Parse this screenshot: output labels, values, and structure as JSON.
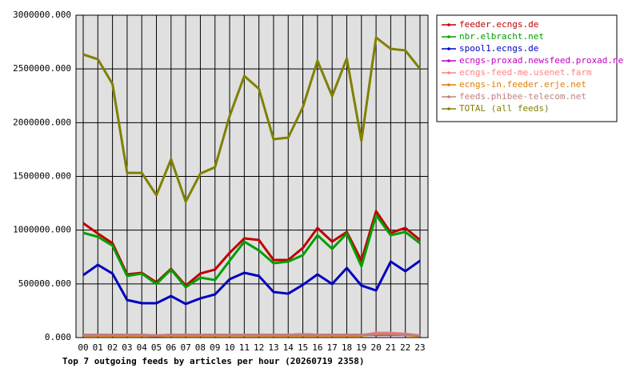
{
  "chart_data": {
    "type": "line",
    "title": "Top 7 outgoing feeds by articles per hour (20260719 2358)",
    "categories": [
      "00",
      "01",
      "02",
      "03",
      "04",
      "05",
      "06",
      "07",
      "08",
      "09",
      "10",
      "11",
      "12",
      "13",
      "14",
      "15",
      "16",
      "17",
      "18",
      "19",
      "20",
      "21",
      "22",
      "23"
    ],
    "ylim": [
      0,
      3000000
    ],
    "yticks": [
      {
        "value": 0,
        "label": "0.000"
      },
      {
        "value": 500000,
        "label": "500000.000"
      },
      {
        "value": 1000000,
        "label": "1000000.000"
      },
      {
        "value": 1500000,
        "label": "1500000.000"
      },
      {
        "value": 2000000,
        "label": "2000000.000"
      },
      {
        "value": 2500000,
        "label": "2500000.000"
      },
      {
        "value": 3000000,
        "label": "3000000.000"
      }
    ],
    "grid": true,
    "legend": "right",
    "series": [
      {
        "name": "feeder.ecngs.de",
        "color": "#c00000",
        "values": [
          1065000,
          968000,
          878000,
          588000,
          603000,
          514000,
          640000,
          484000,
          596000,
          633000,
          789000,
          923000,
          908000,
          722000,
          722000,
          834000,
          1020000,
          893000,
          983000,
          715000,
          1176000,
          975000,
          1020000,
          908000
        ]
      },
      {
        "name": "nbr.elbracht.net",
        "color": "#00a000",
        "values": [
          975000,
          938000,
          856000,
          573000,
          596000,
          499000,
          633000,
          469000,
          558000,
          536000,
          715000,
          893000,
          811000,
          692000,
          707000,
          767000,
          953000,
          826000,
          968000,
          663000,
          1139000,
          953000,
          983000,
          878000
        ]
      },
      {
        "name": "spool1.ecngs.de",
        "color": "#0000c0",
        "values": [
          581000,
          677000,
          596000,
          350000,
          320000,
          320000,
          387000,
          313000,
          365000,
          402000,
          543000,
          603000,
          573000,
          424000,
          409000,
          491000,
          588000,
          499000,
          648000,
          484000,
          439000,
          707000,
          618000,
          715000
        ]
      },
      {
        "name": "ecngs-proxad.newsfeed.proxad.net",
        "color": "#c000c0",
        "values": [
          25000,
          25000,
          25000,
          25000,
          25000,
          20000,
          25000,
          25000,
          25000,
          25000,
          25000,
          25000,
          25000,
          25000,
          25000,
          30000,
          25000,
          25000,
          25000,
          25000,
          25000,
          25000,
          25000,
          20000
        ]
      },
      {
        "name": "ecngs-feed-me.usenet.farm",
        "color": "#ff8080",
        "values": [
          20000,
          20000,
          20000,
          20000,
          20000,
          15000,
          20000,
          20000,
          20000,
          20000,
          25000,
          25000,
          20000,
          20000,
          20000,
          25000,
          25000,
          20000,
          20000,
          20000,
          45000,
          45000,
          35000,
          20000
        ]
      },
      {
        "name": "ecngs-in.feeder.erje.net",
        "color": "#e08000",
        "values": [
          20000,
          20000,
          20000,
          20000,
          20000,
          15000,
          20000,
          20000,
          20000,
          20000,
          20000,
          20000,
          20000,
          20000,
          20000,
          20000,
          20000,
          20000,
          20000,
          20000,
          30000,
          30000,
          25000,
          15000
        ]
      },
      {
        "name": "feeds.phibee-telecom.net",
        "color": "#c08080",
        "values": [
          25000,
          25000,
          25000,
          25000,
          25000,
          20000,
          25000,
          25000,
          25000,
          25000,
          25000,
          25000,
          25000,
          25000,
          25000,
          30000,
          25000,
          25000,
          25000,
          25000,
          35000,
          35000,
          30000,
          20000
        ]
      },
      {
        "name": "TOTAL (all feeds)",
        "color": "#808000",
        "values": [
          2635000,
          2590000,
          2360000,
          1533000,
          1533000,
          1325000,
          1660000,
          1265000,
          1526000,
          1586000,
          2062000,
          2434000,
          2315000,
          1846000,
          1861000,
          2144000,
          2576000,
          2248000,
          2598000,
          1831000,
          2792000,
          2687000,
          2672000,
          2501000
        ]
      }
    ]
  }
}
